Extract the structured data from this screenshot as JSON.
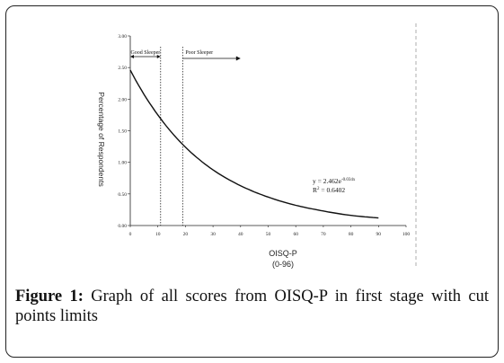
{
  "caption": {
    "label": "Figure 1:",
    "text": " Graph of all scores from OISQ-P in first stage with cut points limits"
  },
  "chart_data": {
    "type": "line",
    "xlabel_line1": "OISQ-P",
    "xlabel_line2": "(0-96)",
    "ylabel": "Percentage of Respondents",
    "xlim": [
      0,
      100
    ],
    "ylim": [
      0,
      3
    ],
    "x_ticks": [
      "0",
      "10",
      "20",
      "30",
      "40",
      "50",
      "60",
      "70",
      "80",
      "90",
      "100"
    ],
    "y_ticks": [
      "0.00",
      "0.50",
      "1.00",
      "1.50",
      "2.00",
      "2.50",
      "3.00"
    ],
    "series": [
      {
        "x": [
          0,
          10,
          20,
          30,
          40,
          50,
          60,
          70,
          80,
          90
        ],
        "y": [
          2.46,
          1.75,
          1.24,
          0.88,
          0.63,
          0.45,
          0.32,
          0.23,
          0.16,
          0.12
        ]
      }
    ],
    "cut_points": [
      11,
      19
    ],
    "zones": [
      {
        "label": "Good Sleeper",
        "from": 0,
        "to": 11
      },
      {
        "label": "Poor Sleeper",
        "from": 19,
        "to": 40
      }
    ],
    "equation": {
      "base": "y = 2.462e",
      "exponent": "-0.034x"
    },
    "r2": {
      "prefix": "R",
      "sup": "2",
      "value": " = 0.6402"
    },
    "grid": false
  }
}
